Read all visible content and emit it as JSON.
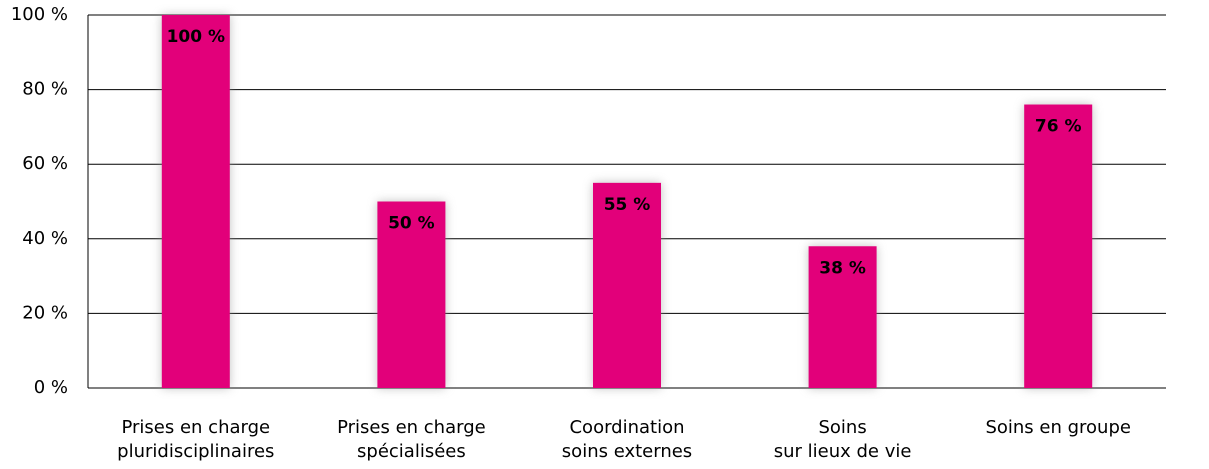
{
  "chart_data": {
    "type": "bar",
    "categories": [
      [
        "Prises en charge",
        "pluridisciplinaires"
      ],
      [
        "Prises en charge",
        "spécialisées"
      ],
      [
        "Coordination",
        "soins externes"
      ],
      [
        "Soins",
        "sur lieux de vie"
      ],
      [
        "Soins en groupe"
      ]
    ],
    "values": [
      100,
      50,
      55,
      38,
      76
    ],
    "value_labels": [
      "100 %",
      "50 %",
      "55 %",
      "38 %",
      "76 %"
    ],
    "color": "#e2007a",
    "ylim": [
      0,
      100
    ],
    "yticks": [
      {
        "value": 0,
        "label": "0 %"
      },
      {
        "value": 20,
        "label": "20 %"
      },
      {
        "value": 40,
        "label": "40 %"
      },
      {
        "value": 60,
        "label": "60 %"
      },
      {
        "value": 80,
        "label": "80 %"
      },
      {
        "value": 100,
        "label": "100 %"
      }
    ],
    "grid": true
  }
}
